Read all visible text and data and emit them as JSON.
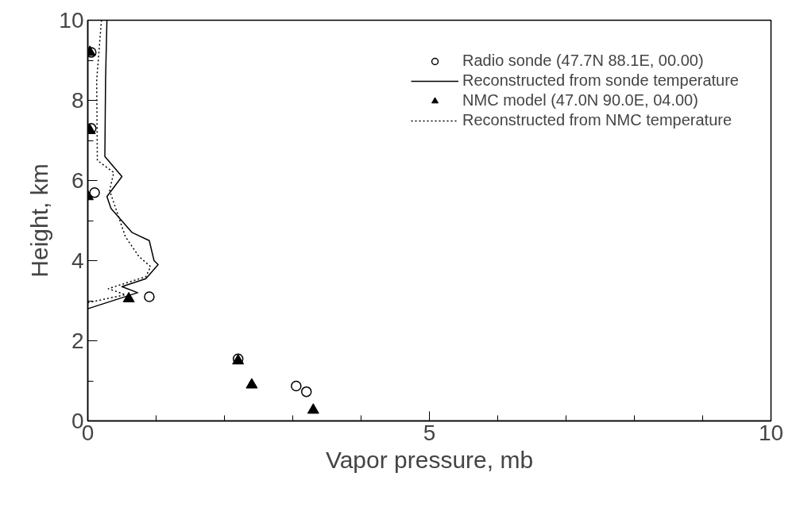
{
  "chart_data": {
    "type": "scatter",
    "xlabel": "Vapor pressure, mb",
    "ylabel": "Height, km",
    "xlim": [
      0,
      10
    ],
    "ylim": [
      0,
      10
    ],
    "xticks": [
      0,
      5,
      10
    ],
    "yticks": [
      0,
      2,
      4,
      6,
      8,
      10
    ],
    "grid": false,
    "legend": "top right",
    "series": [
      {
        "name": "Radio sonde (47.7N 88.1E, 00.00)",
        "marker": "circle",
        "color": "#000000",
        "x": [
          0.05,
          0.05,
          0.1,
          0.9,
          2.2,
          3.05,
          3.2
        ],
        "values": [
          9.2,
          7.3,
          5.7,
          3.1,
          1.55,
          0.87,
          0.73
        ]
      },
      {
        "name": "Reconstructed from sonde temperature",
        "type": "line",
        "line_style": "solid",
        "color": "#000000",
        "x": [
          0,
          0.73,
          0.5,
          0.85,
          1.03,
          0.97,
          0.9,
          0.65,
          0.34,
          0.28,
          0.5,
          0.25,
          0.26,
          0.28
        ],
        "values": [
          2.8,
          3.2,
          3.35,
          3.55,
          3.9,
          4.0,
          4.5,
          4.7,
          5.3,
          5.6,
          6.1,
          6.6,
          8.5,
          10
        ]
      },
      {
        "name": "NMC model (47.0N 90.0E, 04.00)",
        "marker": "triangle",
        "color": "#000000",
        "x": [
          0.03,
          0.03,
          0.0,
          0.6,
          2.2,
          2.4,
          3.3
        ],
        "values": [
          9.2,
          7.25,
          5.6,
          3.05,
          1.5,
          0.9,
          0.27
        ]
      },
      {
        "name": "Reconstructed from NMC temperature",
        "type": "line",
        "line_style": "dotted",
        "color": "#000000",
        "x": [
          0,
          0.55,
          0.3,
          0.85,
          0.92,
          0.75,
          0.55,
          0.32,
          0.38,
          0.14,
          0.13,
          0.2
        ],
        "values": [
          2.95,
          3.15,
          3.3,
          3.6,
          3.85,
          4.1,
          4.6,
          5.75,
          6.2,
          6.5,
          8.5,
          10
        ]
      }
    ]
  }
}
